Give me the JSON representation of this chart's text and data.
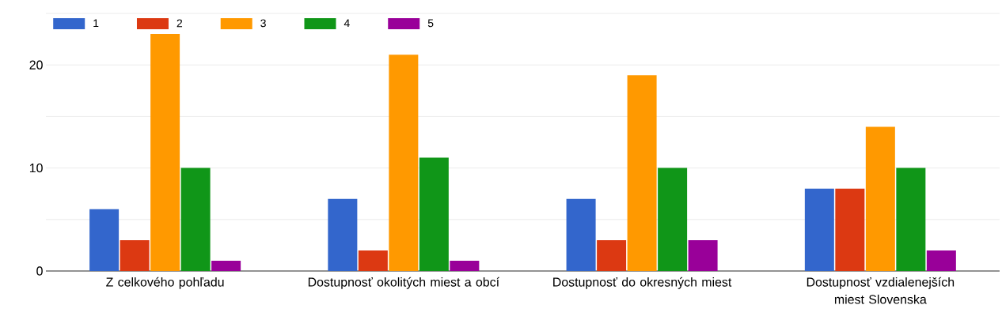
{
  "chart_data": {
    "type": "bar",
    "categories": [
      "Z celkového pohľadu",
      "Dostupnosť okolitých miest a obcí",
      "Dostupnosť do okresných miest",
      "Dostupnosť vzdialenejších miest Slovenska"
    ],
    "series": [
      {
        "name": "1",
        "color": "#3366cc",
        "values": [
          6,
          7,
          7,
          8
        ]
      },
      {
        "name": "2",
        "color": "#dc3912",
        "values": [
          3,
          2,
          3,
          8
        ]
      },
      {
        "name": "3",
        "color": "#ff9900",
        "values": [
          23,
          21,
          19,
          14
        ]
      },
      {
        "name": "4",
        "color": "#109618",
        "values": [
          10,
          11,
          10,
          10
        ]
      },
      {
        "name": "5",
        "color": "#990099",
        "values": [
          1,
          1,
          3,
          2
        ]
      }
    ],
    "ylim": [
      0,
      25
    ],
    "yticks": [
      0,
      {
        "value": 5,
        "label": null
      },
      10,
      {
        "value": 15,
        "label": null
      },
      20,
      {
        "value": 25,
        "label": null
      }
    ],
    "grid": "y",
    "legend": "top left"
  }
}
